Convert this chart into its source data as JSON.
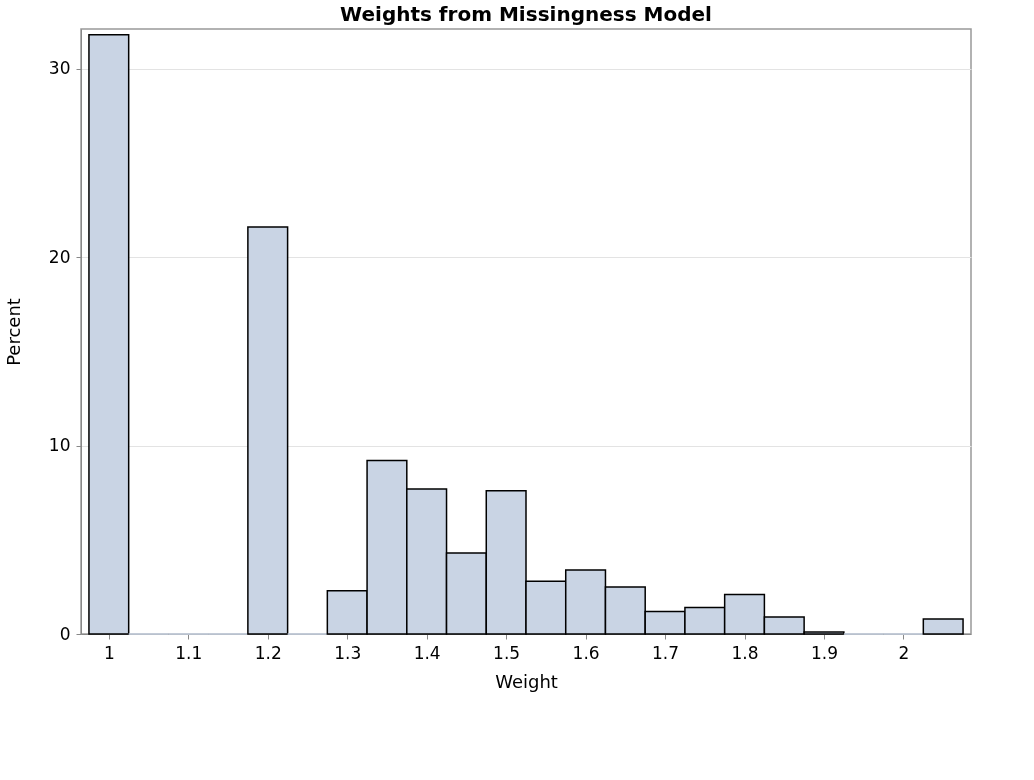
{
  "chart_data": {
    "type": "histogram",
    "title": "Weights from Missingness Model",
    "xlabel": "Weight",
    "ylabel": "Percent",
    "bins": [
      0.975,
      1.025,
      1.075,
      1.125,
      1.175,
      1.225,
      1.275,
      1.325,
      1.375,
      1.425,
      1.475,
      1.525,
      1.575,
      1.625,
      1.675,
      1.725,
      1.775,
      1.825,
      1.875,
      1.925,
      1.975,
      2.025,
      2.075
    ],
    "values": [
      31.8,
      0,
      0,
      0,
      21.6,
      0,
      2.3,
      9.2,
      7.7,
      4.3,
      7.6,
      2.8,
      3.4,
      2.5,
      1.2,
      1.4,
      2.1,
      0.9,
      0.1,
      0,
      0,
      0.8
    ],
    "color": "#c9d4e4",
    "xlim": [
      0.965,
      2.085
    ],
    "xticks": [
      1,
      1.1,
      1.2,
      1.3,
      1.4,
      1.5,
      1.6,
      1.7,
      1.8,
      1.9,
      2
    ],
    "ylim": [
      0,
      32.1
    ],
    "yticks": [
      0,
      10,
      20,
      30
    ],
    "grid": "y"
  }
}
